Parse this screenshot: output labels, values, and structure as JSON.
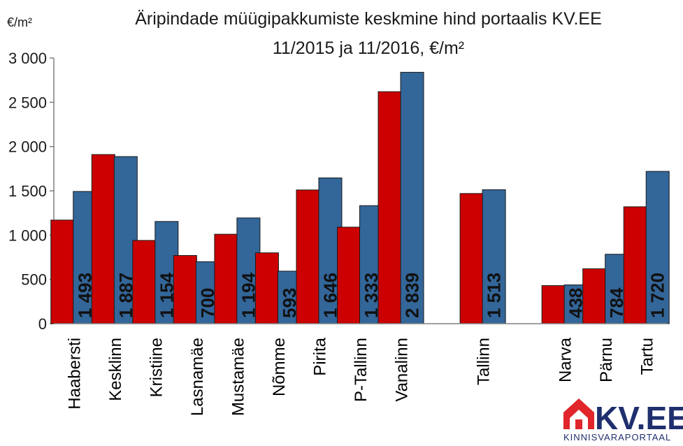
{
  "chart_data": {
    "type": "bar",
    "title_line1": "Äripindade müügipakkumiste keskmine hind portaalis KV.EE",
    "title_line2": "11/2015 ja 11/2016, €/m²",
    "unit_label": "€/m²",
    "ylim": [
      0,
      3000
    ],
    "yticks": [
      "0",
      "500",
      "1 000",
      "1 500",
      "2 000",
      "2 500",
      "3 000"
    ],
    "ytick_values": [
      0,
      500,
      1000,
      1500,
      2000,
      2500,
      3000
    ],
    "grid": false,
    "legend": "none",
    "categories": [
      "Haabersti",
      "Kesklinn",
      "Kristiine",
      "Lasnamäe",
      "Mustamäe",
      "Nõmme",
      "Pirita",
      "P-Tallinn",
      "Vanalinn",
      "",
      "Tallinn",
      "",
      "Narva",
      "Pärnu",
      "Tartu"
    ],
    "series": [
      {
        "color": "#cc0000",
        "values": [
          1170,
          1910,
          940,
          770,
          1010,
          800,
          1510,
          1090,
          2620,
          null,
          1470,
          null,
          430,
          620,
          1320
        ]
      },
      {
        "color": "#336699",
        "values": [
          1493,
          1887,
          1154,
          700,
          1194,
          593,
          1646,
          1333,
          2839,
          null,
          1513,
          null,
          438,
          784,
          1720
        ],
        "data_labels": [
          "1 493",
          "1 887",
          "1 154",
          "700",
          "1 194",
          "593",
          "1 646",
          "1 333",
          "2 839",
          "",
          "1 513",
          "",
          "438",
          "784",
          "1 720"
        ]
      }
    ]
  },
  "logo": {
    "name": "KV.EE",
    "tagline": "KINNISVARAPORTAAL",
    "brand_color": "#1f2f6e",
    "accent_color": "#e0252b",
    "icon": "house-icon"
  }
}
